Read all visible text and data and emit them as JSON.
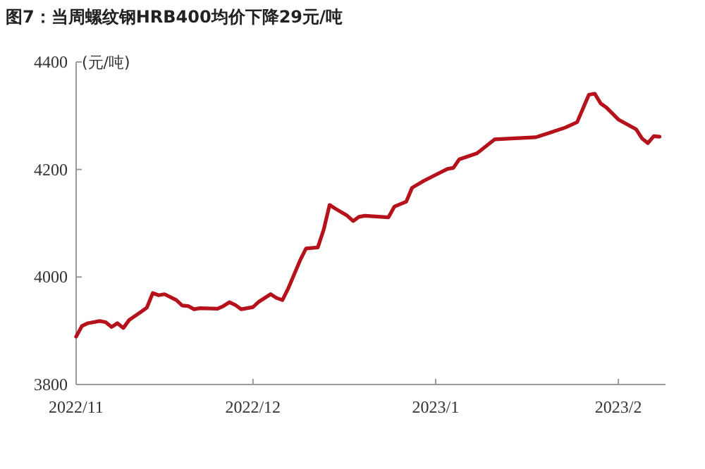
{
  "chart_data": {
    "type": "line",
    "title": "图7：当周螺纹钢HRB400均价下降29元/吨",
    "ylabel": "(元/吨)",
    "grid": false,
    "marker": "none",
    "line_style": "solid",
    "xlim": [
      "2022-11-01",
      "2023-02-09"
    ],
    "xticks": [
      {
        "value": "2022-11-01",
        "label": "2022/11"
      },
      {
        "value": "2022-12-01",
        "label": "2022/12"
      },
      {
        "value": "2023-01-01",
        "label": "2023/1"
      },
      {
        "value": "2023-02-01",
        "label": "2023/2"
      }
    ],
    "ylim": [
      3800,
      4400
    ],
    "yticks": [
      3800,
      4000,
      4200,
      4400
    ],
    "x": [
      "2022-11-01",
      "2022-11-02",
      "2022-11-03",
      "2022-11-05",
      "2022-11-06",
      "2022-11-07",
      "2022-11-08",
      "2022-11-09",
      "2022-11-10",
      "2022-11-12",
      "2022-11-13",
      "2022-11-14",
      "2022-11-15",
      "2022-11-16",
      "2022-11-18",
      "2022-11-19",
      "2022-11-20",
      "2022-11-21",
      "2022-11-22",
      "2022-11-25",
      "2022-11-26",
      "2022-11-27",
      "2022-11-28",
      "2022-11-29",
      "2022-12-01",
      "2022-12-02",
      "2022-12-04",
      "2022-12-05",
      "2022-12-06",
      "2022-12-07",
      "2022-12-08",
      "2022-12-09",
      "2022-12-10",
      "2022-12-12",
      "2022-12-13",
      "2022-12-14",
      "2022-12-15",
      "2022-12-17",
      "2022-12-18",
      "2022-12-19",
      "2022-12-20",
      "2022-12-24",
      "2022-12-25",
      "2022-12-27",
      "2022-12-28",
      "2022-12-30",
      "2023-01-01",
      "2023-01-03",
      "2023-01-04",
      "2023-01-05",
      "2023-01-08",
      "2023-01-11",
      "2023-01-18",
      "2023-01-20",
      "2023-01-23",
      "2023-01-25",
      "2023-01-27",
      "2023-01-28",
      "2023-01-29",
      "2023-01-30",
      "2023-02-01",
      "2023-02-04",
      "2023-02-05",
      "2023-02-06",
      "2023-02-07",
      "2023-02-08"
    ],
    "series": [
      {
        "color": "#b5121b",
        "values": [
          3889,
          3909,
          3914,
          3918,
          3916,
          3907,
          3914,
          3905,
          3920,
          3935,
          3943,
          3970,
          3966,
          3968,
          3957,
          3947,
          3946,
          3940,
          3942,
          3941,
          3946,
          3953,
          3948,
          3940,
          3944,
          3954,
          3968,
          3961,
          3957,
          3979,
          4005,
          4031,
          4053,
          4055,
          4088,
          4134,
          4127,
          4114,
          4104,
          4112,
          4114,
          4111,
          4131,
          4140,
          4166,
          4179,
          4190,
          4201,
          4203,
          4219,
          4230,
          4256,
          4260,
          4267,
          4278,
          4288,
          4339,
          4341,
          4323,
          4315,
          4293,
          4275,
          4258,
          4249,
          4262,
          4261
        ]
      }
    ]
  }
}
